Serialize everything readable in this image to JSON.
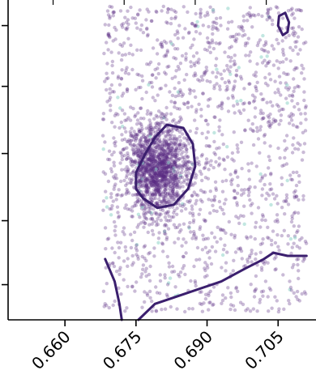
{
  "chart_data": {
    "type": "scatter",
    "title": "",
    "xlabel": "",
    "ylabel": "",
    "xlim": [
      0.648,
      0.713
    ],
    "ylim": [
      0.0,
      1.0
    ],
    "x_ticks": [
      0.66,
      0.675,
      0.69,
      0.705
    ],
    "x_tick_labels": [
      "0.660",
      "0.675",
      "0.690",
      "0.705"
    ],
    "y_ticks": [
      0.11,
      0.31,
      0.52,
      0.73,
      0.92
    ],
    "y_tick_labels": [
      "",
      "",
      "",
      "",
      ""
    ],
    "grid": false,
    "legend": "none",
    "point_color": "#5b2c83",
    "accent_point_color": "#8fd3c8",
    "contour_color": "#3b1f6e",
    "scatter": {
      "description_free_params": true,
      "n_background": 1500,
      "background_x_range": [
        0.668,
        0.711
      ],
      "background_y_range": [
        0.02,
        0.98
      ],
      "n_core": 1300,
      "core_center": [
        0.6795,
        0.47
      ],
      "core_spread": [
        0.0032,
        0.07
      ]
    },
    "contours": [
      {
        "level": "inner",
        "points": [
          [
            0.6765,
            0.38
          ],
          [
            0.6795,
            0.35
          ],
          [
            0.683,
            0.36
          ],
          [
            0.686,
            0.41
          ],
          [
            0.6875,
            0.48
          ],
          [
            0.687,
            0.55
          ],
          [
            0.685,
            0.6
          ],
          [
            0.6815,
            0.61
          ],
          [
            0.679,
            0.57
          ],
          [
            0.677,
            0.52
          ],
          [
            0.675,
            0.46
          ],
          [
            0.675,
            0.41
          ],
          [
            0.6765,
            0.38
          ]
        ]
      },
      {
        "level": "outer-lower",
        "points": [
          [
            0.6685,
            0.19
          ],
          [
            0.6705,
            0.12
          ],
          [
            0.6715,
            0.05
          ],
          [
            0.672,
            0.0
          ]
        ]
      },
      {
        "level": "outer-right",
        "points": [
          [
            0.6755,
            0.0
          ],
          [
            0.679,
            0.05
          ],
          [
            0.685,
            0.08
          ],
          [
            0.693,
            0.12
          ],
          [
            0.698,
            0.16
          ],
          [
            0.702,
            0.19
          ],
          [
            0.704,
            0.21
          ],
          [
            0.707,
            0.2
          ],
          [
            0.711,
            0.2
          ]
        ]
      },
      {
        "level": "outer-small",
        "points": [
          [
            0.705,
            0.92
          ],
          [
            0.706,
            0.89
          ],
          [
            0.707,
            0.9
          ],
          [
            0.7073,
            0.93
          ],
          [
            0.7065,
            0.96
          ],
          [
            0.7052,
            0.95
          ],
          [
            0.705,
            0.92
          ]
        ]
      }
    ]
  }
}
